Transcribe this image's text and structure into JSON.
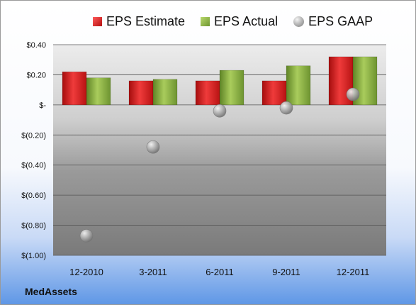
{
  "chart_data": {
    "type": "bar",
    "categories": [
      "12-2010",
      "3-2011",
      "6-2011",
      "9-2011",
      "12-2011"
    ],
    "series": [
      {
        "name": "EPS Estimate",
        "kind": "bar",
        "color": "#d42020",
        "values": [
          0.22,
          0.16,
          0.16,
          0.16,
          0.32
        ]
      },
      {
        "name": "EPS Actual",
        "kind": "bar",
        "color": "#8db33f",
        "values": [
          0.18,
          0.17,
          0.23,
          0.26,
          0.32
        ]
      },
      {
        "name": "EPS GAAP",
        "kind": "scatter",
        "color": "#a6a6a6",
        "values": [
          -0.87,
          -0.28,
          -0.04,
          -0.02,
          0.07
        ]
      }
    ],
    "ylim": [
      -1.0,
      0.4
    ],
    "yticks": [
      {
        "value": 0.4,
        "label": "$0.40"
      },
      {
        "value": 0.2,
        "label": "$0.20"
      },
      {
        "value": 0.0,
        "label": "$-"
      },
      {
        "value": -0.2,
        "label": "$(0.20)"
      },
      {
        "value": -0.4,
        "label": "$(0.40)"
      },
      {
        "value": -0.6,
        "label": "$(0.60)"
      },
      {
        "value": -0.8,
        "label": "$(0.80)"
      },
      {
        "value": -1.0,
        "label": "$(1.00)"
      }
    ],
    "grid": true,
    "legend_position": "top"
  },
  "legend": {
    "estimate_label": "EPS Estimate",
    "actual_label": "EPS Actual",
    "gaap_label": "EPS GAAP"
  },
  "brand": "MedAssets"
}
